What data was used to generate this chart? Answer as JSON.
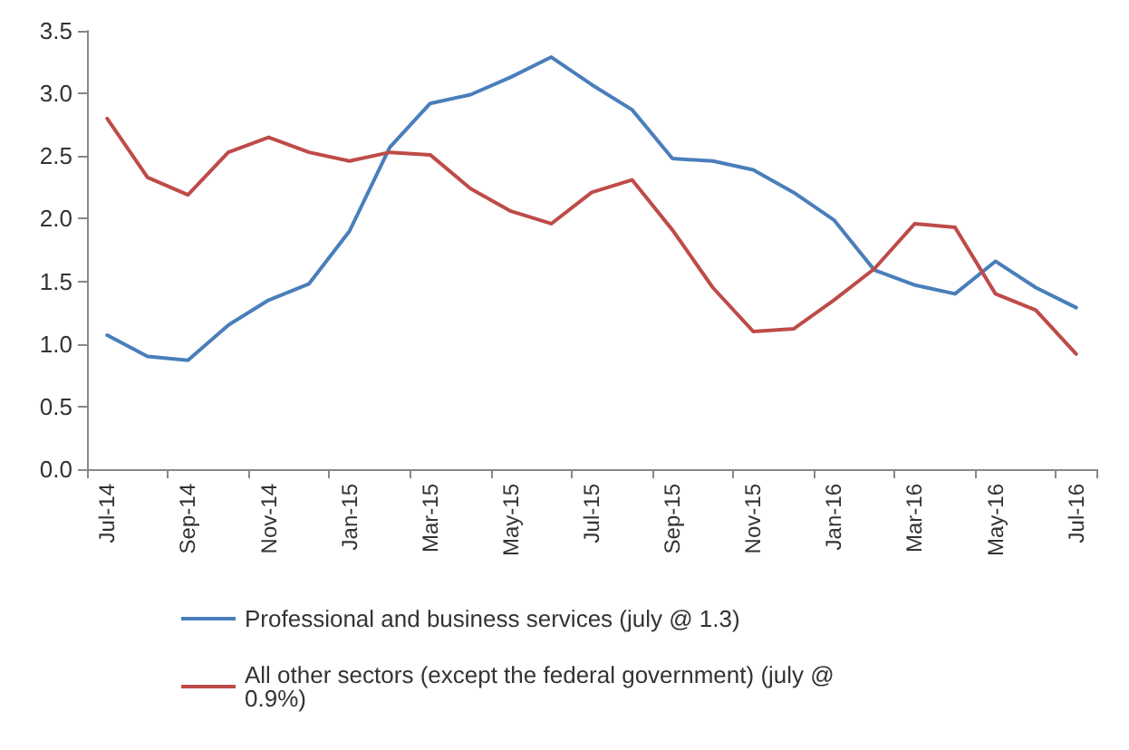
{
  "chart_data": {
    "type": "line",
    "categories": [
      "Jul-14",
      null,
      "Sep-14",
      null,
      "Nov-14",
      null,
      "Jan-15",
      null,
      "Mar-15",
      null,
      "May-15",
      null,
      "Jul-15",
      null,
      "Sep-15",
      null,
      "Nov-15",
      null,
      "Jan-16",
      null,
      "Mar-16",
      null,
      "May-16",
      null,
      "Jul-16"
    ],
    "series": [
      {
        "name": "Professional and business services (july @ 1.3)",
        "color": "#4a7ebb",
        "values": [
          1.07,
          0.9,
          0.87,
          1.15,
          1.35,
          1.48,
          1.9,
          2.57,
          2.92,
          2.99,
          3.13,
          3.29,
          3.07,
          2.87,
          2.48,
          2.46,
          2.39,
          2.21,
          1.99,
          1.59,
          1.47,
          1.4,
          1.66,
          1.45,
          1.29
        ]
      },
      {
        "name": "All other sectors (except the federal government) (july @ 0.9%)",
        "color": "#be4b48",
        "values": [
          2.8,
          2.33,
          2.19,
          2.53,
          2.65,
          2.53,
          2.46,
          2.53,
          2.51,
          2.24,
          2.06,
          1.96,
          2.21,
          2.31,
          1.91,
          1.45,
          1.1,
          1.12,
          1.35,
          1.6,
          1.96,
          1.93,
          1.4,
          1.27,
          0.92
        ]
      }
    ],
    "ylim": [
      0,
      3.5
    ],
    "yticks": [
      {
        "value": 0,
        "label": "0.0"
      },
      {
        "value": 0.5,
        "label": "0.5"
      },
      {
        "value": 1,
        "label": "1.0"
      },
      {
        "value": 1.5,
        "label": "1.5"
      },
      {
        "value": 2,
        "label": "2.0"
      },
      {
        "value": 2.5,
        "label": "2.5"
      },
      {
        "value": 3,
        "label": "3.0"
      },
      {
        "value": 3.5,
        "label": "3.5"
      }
    ],
    "grid": false,
    "legend": "bottom",
    "marker": "none",
    "line_style": "solid"
  }
}
